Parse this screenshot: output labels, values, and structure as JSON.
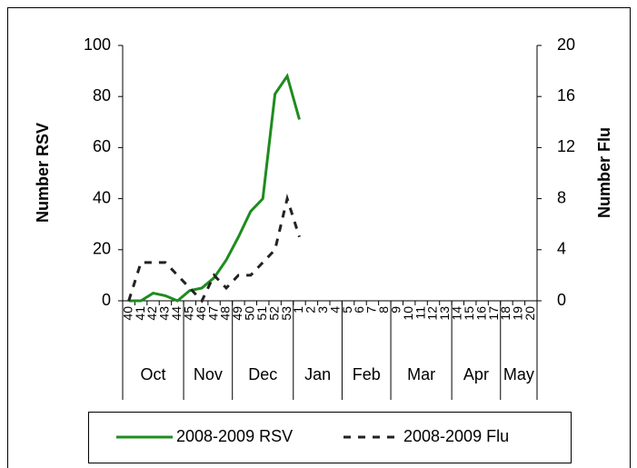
{
  "chart_data": {
    "type": "line",
    "categories": [
      "40",
      "41",
      "42",
      "43",
      "44",
      "45",
      "46",
      "47",
      "48",
      "49",
      "50",
      "51",
      "52",
      "53",
      "1",
      "2",
      "3",
      "4",
      "5",
      "6",
      "7",
      "8",
      "9",
      "10",
      "11",
      "12",
      "13",
      "14",
      "15",
      "16",
      "17",
      "18",
      "19",
      "20"
    ],
    "x_groups": [
      {
        "label": "Oct",
        "first": "40"
      },
      {
        "label": "Nov",
        "first": "45"
      },
      {
        "label": "Dec",
        "first": "49"
      },
      {
        "label": "Jan",
        "first": "1"
      },
      {
        "label": "Feb",
        "first": "5"
      },
      {
        "label": "Mar",
        "first": "9"
      },
      {
        "label": "Apr",
        "first": "14"
      },
      {
        "label": "May",
        "first": "18"
      }
    ],
    "ylabel": "Number RSV",
    "y2label": "Number Flu",
    "ylim": [
      0,
      100
    ],
    "yticks": [
      0,
      20,
      40,
      60,
      80,
      100
    ],
    "y2lim": [
      0,
      20
    ],
    "y2ticks": [
      0,
      4,
      8,
      12,
      16,
      20
    ],
    "series": [
      {
        "name": "2008-2009 RSV",
        "color": "#1e8c1e",
        "dash": false,
        "values": [
          0,
          0,
          3,
          2,
          0,
          4,
          5,
          9,
          16,
          25,
          35,
          40,
          81,
          88,
          71,
          null,
          null,
          null,
          null,
          null,
          null,
          null,
          null,
          null,
          null,
          null,
          null,
          null,
          null,
          null,
          null,
          null,
          null,
          null
        ]
      },
      {
        "name": "2008-2009 Flu",
        "color": "#222222",
        "dash": true,
        "axis": "y2",
        "values": [
          0,
          3,
          3,
          3,
          2,
          1,
          0,
          2,
          1,
          2,
          2,
          3,
          4,
          8,
          5,
          null,
          null,
          null,
          null,
          null,
          null,
          null,
          null,
          null,
          null,
          null,
          null,
          null,
          null,
          null,
          null,
          null,
          null,
          null
        ]
      }
    ],
    "legend": "bottom"
  }
}
